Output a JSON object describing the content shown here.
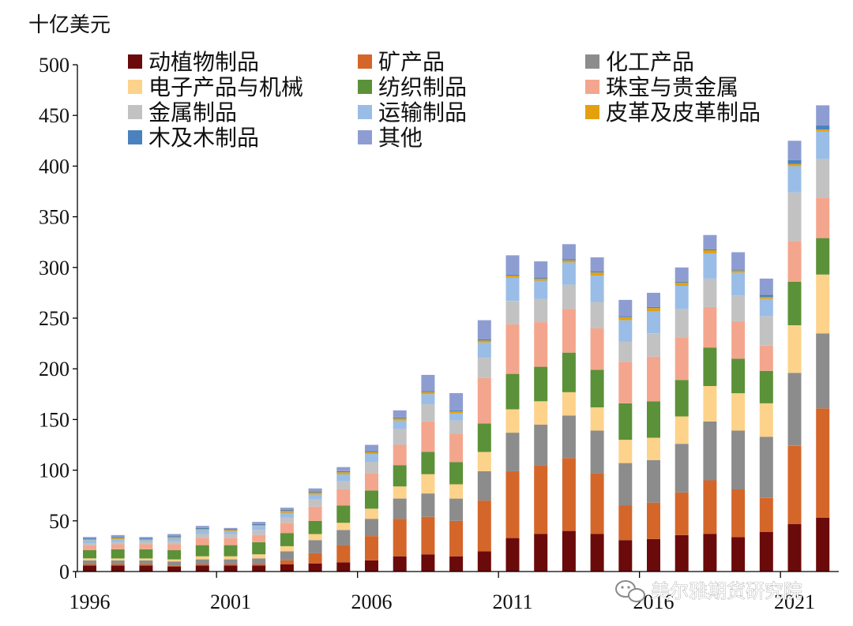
{
  "chart_data": {
    "type": "bar",
    "stacked": true,
    "unit_label": "十亿美元",
    "ylim": [
      0,
      500
    ],
    "yticks": [
      0,
      50,
      100,
      150,
      200,
      250,
      300,
      350,
      400,
      450,
      500
    ],
    "x": [
      1996,
      1997,
      1998,
      1999,
      2000,
      2001,
      2002,
      2003,
      2004,
      2005,
      2006,
      2007,
      2008,
      2009,
      2010,
      2011,
      2012,
      2013,
      2014,
      2015,
      2016,
      2017,
      2018,
      2019,
      2020,
      2021,
      2022
    ],
    "xtick_labels": [
      "1996",
      "2001",
      "2006",
      "2011",
      "2016",
      "2021"
    ],
    "legend_placement": "top, three columns",
    "grid": false,
    "series": [
      {
        "name": "动植物制品",
        "color": "#6b0a0a",
        "values": [
          6,
          6,
          6,
          5,
          6,
          6,
          6,
          7,
          8,
          9,
          11,
          15,
          17,
          15,
          20,
          33,
          37,
          40,
          37,
          31,
          32,
          36,
          37,
          34,
          39,
          47,
          53
        ]
      },
      {
        "name": "矿产品",
        "color": "#d4662a",
        "values": [
          1,
          1,
          1,
          1,
          1,
          1,
          1,
          4,
          10,
          17,
          24,
          37,
          37,
          35,
          50,
          66,
          68,
          72,
          60,
          34,
          36,
          42,
          53,
          47,
          34,
          77,
          108
        ]
      },
      {
        "name": "化工产品",
        "color": "#8c8c8c",
        "values": [
          4,
          4,
          4,
          4,
          5,
          5,
          6,
          9,
          13,
          15,
          17,
          20,
          23,
          22,
          29,
          38,
          40,
          42,
          42,
          42,
          42,
          48,
          58,
          58,
          60,
          72,
          74
        ]
      },
      {
        "name": "电子产品与机械",
        "color": "#fdd28a",
        "values": [
          2,
          2,
          2,
          2,
          3,
          3,
          4,
          5,
          6,
          7,
          10,
          12,
          19,
          14,
          19,
          23,
          23,
          23,
          23,
          23,
          22,
          27,
          35,
          37,
          33,
          47,
          58
        ]
      },
      {
        "name": "纺织制品",
        "color": "#5b9138",
        "values": [
          8,
          9,
          9,
          9,
          11,
          11,
          12,
          13,
          13,
          17,
          18,
          21,
          22,
          22,
          28,
          35,
          34,
          39,
          37,
          36,
          36,
          36,
          38,
          34,
          32,
          43,
          36
        ]
      },
      {
        "name": "珠宝与贵金属",
        "color": "#f3a68d",
        "values": [
          5,
          5,
          5,
          6,
          7,
          7,
          7,
          10,
          14,
          16,
          17,
          20,
          30,
          28,
          45,
          49,
          44,
          43,
          41,
          41,
          44,
          42,
          40,
          37,
          25,
          40,
          40
        ]
      },
      {
        "name": "金属制品",
        "color": "#c2c2c2",
        "values": [
          2,
          2,
          2,
          3,
          4,
          4,
          5,
          5,
          7,
          8,
          11,
          16,
          17,
          13,
          20,
          23,
          23,
          24,
          26,
          20,
          23,
          28,
          28,
          25,
          29,
          48,
          38
        ]
      },
      {
        "name": "运输制品",
        "color": "#99bde6",
        "values": [
          3,
          3,
          2,
          3,
          4,
          3,
          4,
          5,
          5,
          7,
          8,
          8,
          10,
          7,
          15,
          23,
          18,
          22,
          26,
          21,
          22,
          23,
          25,
          23,
          17,
          26,
          27
        ]
      },
      {
        "name": "皮革及皮革制品",
        "color": "#e3a10f",
        "values": [
          1,
          1,
          1,
          1,
          1,
          1,
          1,
          2,
          2,
          2,
          2,
          2,
          2,
          2,
          2,
          2,
          2,
          2,
          3,
          3,
          3,
          3,
          3,
          2,
          2,
          2,
          2
        ]
      },
      {
        "name": "木及木制品",
        "color": "#4a82c0",
        "values": [
          1,
          1,
          1,
          1,
          1,
          1,
          1,
          1,
          1,
          1,
          1,
          1,
          1,
          1,
          1,
          1,
          1,
          1,
          1,
          1,
          1,
          1,
          1,
          1,
          2,
          4,
          4
        ]
      },
      {
        "name": "其他",
        "color": "#8e9dd1",
        "values": [
          1,
          2,
          1,
          2,
          2,
          1,
          2,
          2,
          3,
          4,
          6,
          7,
          16,
          17,
          19,
          19,
          16,
          15,
          14,
          16,
          14,
          14,
          14,
          17,
          16,
          19,
          20
        ]
      }
    ]
  },
  "watermark": {
    "text": "美尔雅期货研究院",
    "icon": "wechat-icon"
  }
}
